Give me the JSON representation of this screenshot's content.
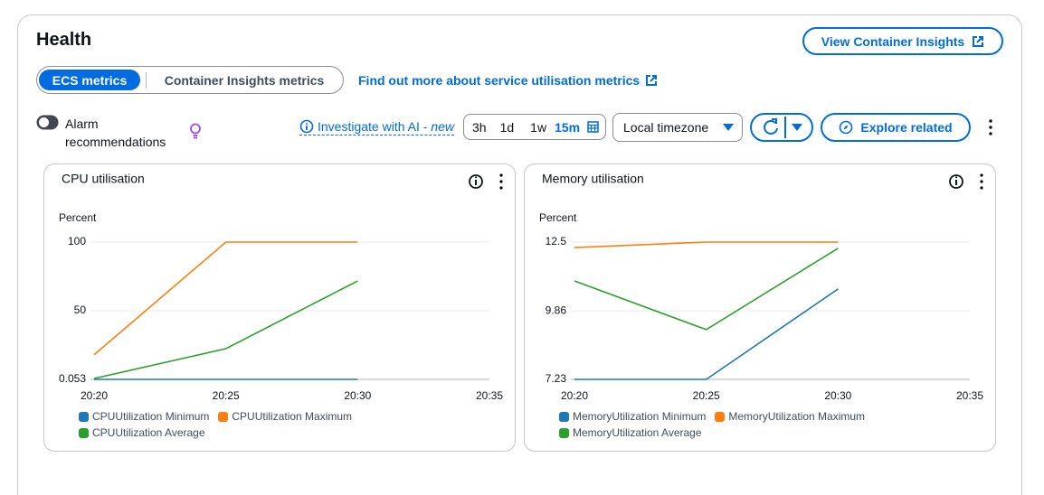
{
  "header": {
    "title": "Health",
    "button": "View Container Insights"
  },
  "tabs": [
    "ECS metrics",
    "Container Insights metrics"
  ],
  "link": "Find out more about service utilisation metrics",
  "toolbar": {
    "toggle": "Alarm recommendations",
    "investigate": "Investigate with AI -",
    "investigate_tag": "new",
    "ranges": [
      "3h",
      "1d",
      "1w",
      "15m"
    ],
    "timezone": "Local timezone",
    "explore": "Explore related"
  },
  "chart_data": [
    {
      "type": "line",
      "title": "CPU utilisation",
      "y_label": "Percent",
      "categories": [
        "20:20",
        "20:25",
        "20:30",
        "20:35"
      ],
      "series": [
        {
          "name": "CPUUtilization Minimum",
          "color": "#1f77b4",
          "values": [
            0.053,
            0.053,
            0.053,
            null
          ]
        },
        {
          "name": "CPUUtilization Maximum",
          "color": "#ff7f0e",
          "values": [
            18,
            100,
            100,
            null
          ]
        },
        {
          "name": "CPUUtilization Average",
          "color": "#2ca02c",
          "values": [
            0.7,
            22.4,
            71.7,
            null
          ]
        }
      ],
      "ylim": [
        0.053,
        100
      ],
      "yticks": [
        0.053,
        50,
        100
      ],
      "grid": true
    },
    {
      "type": "line",
      "title": "Memory utilisation",
      "y_label": "Percent",
      "categories": [
        "20:20",
        "20:25",
        "20:30",
        "20:35"
      ],
      "series": [
        {
          "name": "MemoryUtilization Minimum",
          "color": "#1f77b4",
          "values": [
            7.23,
            7.23,
            10.7,
            null
          ]
        },
        {
          "name": "MemoryUtilization Maximum",
          "color": "#ff7f0e",
          "values": [
            12.29,
            12.5,
            12.5,
            null
          ]
        },
        {
          "name": "MemoryUtilization Average",
          "color": "#2ca02c",
          "values": [
            11.01,
            9.14,
            12.26,
            null
          ]
        }
      ],
      "ylim": [
        7.23,
        12.5
      ],
      "yticks": [
        7.23,
        9.86,
        12.5
      ],
      "grid": true
    }
  ]
}
